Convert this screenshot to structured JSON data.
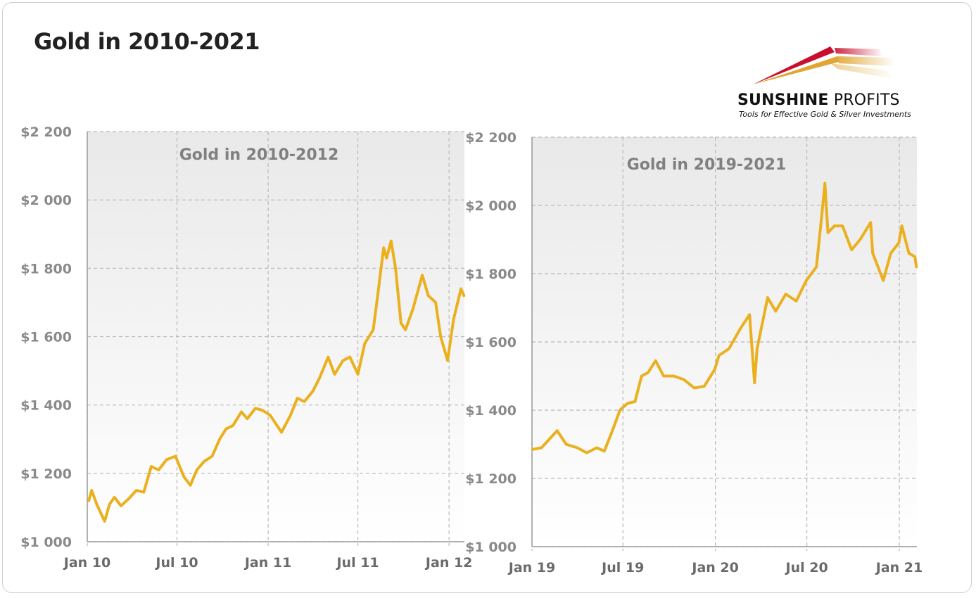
{
  "page": {
    "title": "Gold in 2010-2021"
  },
  "logo": {
    "name_bold": "SUNSHINE",
    "name_regular": " PROFITS",
    "tagline": "Tools for Effective Gold & Silver Investments"
  },
  "colors": {
    "line": "#EAB01E",
    "grid": "#b8b8b8",
    "plot_bg_top": "#e9e9e9",
    "plot_bg_bottom": "#ffffff",
    "logo_red": "#c8102e",
    "logo_gold": "#e0a532"
  },
  "chart_data": [
    {
      "type": "line",
      "title": "Gold in 2010-2012",
      "xlabel": "",
      "ylabel": "",
      "ylim": [
        1000,
        2200
      ],
      "xlim": [
        "2010-01-01",
        "2012-02-01"
      ],
      "grid": true,
      "y_ticks": [
        1000,
        1200,
        1400,
        1600,
        1800,
        2000,
        2200
      ],
      "y_tick_labels": [
        "$1 000",
        "$1 200",
        "$1 400",
        "$1 600",
        "$1 800",
        "$2 000",
        "$2 200"
      ],
      "x_ticks": [
        "2010-01-01",
        "2010-07-01",
        "2011-01-01",
        "2011-07-01",
        "2012-01-01"
      ],
      "x_tick_labels": [
        "Jan 10",
        "Jul 10",
        "Jan 11",
        "Jul 11",
        "Jan 12"
      ],
      "series": [
        {
          "x": [
            "2010-01-04",
            "2010-01-10",
            "2010-01-20",
            "2010-02-05",
            "2010-02-15",
            "2010-02-25",
            "2010-03-10",
            "2010-03-25",
            "2010-04-10",
            "2010-04-25",
            "2010-05-10",
            "2010-05-25",
            "2010-06-10",
            "2010-06-28",
            "2010-07-15",
            "2010-07-28",
            "2010-08-10",
            "2010-08-25",
            "2010-09-10",
            "2010-09-25",
            "2010-10-08",
            "2010-10-22",
            "2010-11-08",
            "2010-11-20",
            "2010-12-06",
            "2010-12-20",
            "2011-01-05",
            "2011-01-28",
            "2011-02-15",
            "2011-03-01",
            "2011-03-15",
            "2011-04-01",
            "2011-04-15",
            "2011-05-02",
            "2011-05-15",
            "2011-06-01",
            "2011-06-15",
            "2011-07-01",
            "2011-07-15",
            "2011-08-01",
            "2011-08-10",
            "2011-08-22",
            "2011-08-28",
            "2011-09-06",
            "2011-09-15",
            "2011-09-26",
            "2011-10-05",
            "2011-10-20",
            "2011-11-08",
            "2011-11-20",
            "2011-12-05",
            "2011-12-15",
            "2011-12-29",
            "2012-01-10",
            "2012-01-25",
            "2012-01-31"
          ],
          "y": [
            1120,
            1150,
            1110,
            1060,
            1110,
            1130,
            1105,
            1125,
            1150,
            1145,
            1220,
            1210,
            1240,
            1250,
            1190,
            1165,
            1210,
            1235,
            1250,
            1300,
            1330,
            1340,
            1380,
            1360,
            1390,
            1385,
            1370,
            1320,
            1370,
            1420,
            1410,
            1440,
            1480,
            1540,
            1490,
            1530,
            1540,
            1490,
            1580,
            1620,
            1720,
            1860,
            1830,
            1880,
            1800,
            1640,
            1620,
            1680,
            1780,
            1720,
            1700,
            1600,
            1530,
            1650,
            1740,
            1720
          ]
        }
      ]
    },
    {
      "type": "line",
      "title": "Gold in 2019-2021",
      "xlabel": "",
      "ylabel": "",
      "ylim": [
        1000,
        2200
      ],
      "xlim": [
        "2019-01-01",
        "2021-02-05"
      ],
      "grid": true,
      "y_ticks": [
        1000,
        1200,
        1400,
        1600,
        1800,
        2000,
        2200
      ],
      "y_tick_labels": [
        "$1 000",
        "$1 200",
        "$1 400",
        "$1 600",
        "$1 800",
        "$2 000",
        "$2 200"
      ],
      "x_ticks": [
        "2019-01-01",
        "2019-07-01",
        "2020-01-01",
        "2020-07-01",
        "2021-01-01"
      ],
      "x_tick_labels": [
        "Jan 19",
        "Jul 19",
        "Jan 20",
        "Jul 20",
        "Jan 21"
      ],
      "series": [
        {
          "x": [
            "2019-01-02",
            "2019-01-20",
            "2019-02-20",
            "2019-03-10",
            "2019-04-01",
            "2019-04-20",
            "2019-05-10",
            "2019-05-25",
            "2019-06-10",
            "2019-06-25",
            "2019-07-10",
            "2019-07-25",
            "2019-08-07",
            "2019-08-20",
            "2019-09-04",
            "2019-09-20",
            "2019-10-10",
            "2019-10-30",
            "2019-11-20",
            "2019-12-10",
            "2019-12-31",
            "2020-01-08",
            "2020-01-28",
            "2020-02-20",
            "2020-03-09",
            "2020-03-19",
            "2020-03-24",
            "2020-04-14",
            "2020-04-30",
            "2020-05-20",
            "2020-06-10",
            "2020-06-30",
            "2020-07-20",
            "2020-07-30",
            "2020-08-06",
            "2020-08-12",
            "2020-08-25",
            "2020-09-10",
            "2020-09-28",
            "2020-10-15",
            "2020-11-05",
            "2020-11-09",
            "2020-11-30",
            "2020-12-15",
            "2020-12-31",
            "2021-01-06",
            "2021-01-20",
            "2021-02-01",
            "2021-02-04"
          ],
          "y": [
            1285,
            1290,
            1340,
            1300,
            1290,
            1275,
            1290,
            1280,
            1340,
            1400,
            1420,
            1425,
            1500,
            1510,
            1545,
            1500,
            1500,
            1490,
            1465,
            1470,
            1520,
            1560,
            1580,
            1640,
            1680,
            1480,
            1580,
            1730,
            1690,
            1740,
            1720,
            1780,
            1820,
            1960,
            2065,
            1920,
            1940,
            1940,
            1870,
            1900,
            1950,
            1860,
            1780,
            1860,
            1890,
            1940,
            1860,
            1850,
            1820
          ]
        }
      ]
    }
  ]
}
